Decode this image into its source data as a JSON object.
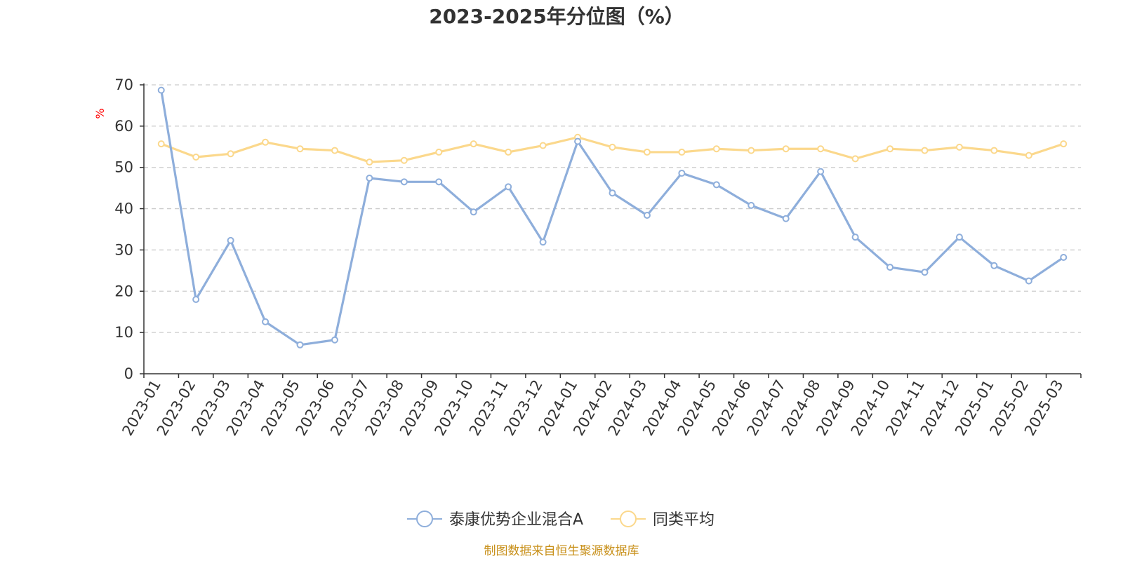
{
  "chart_data": {
    "type": "line",
    "title": "2023-2025年分位图（%）",
    "ylabel": "%",
    "ylim": [
      0,
      70
    ],
    "yticks": [
      0,
      10,
      20,
      30,
      40,
      50,
      60,
      70
    ],
    "grid": true,
    "legend_position": "bottom",
    "categories": [
      "2023-01",
      "2023-02",
      "2023-03",
      "2023-04",
      "2023-05",
      "2023-06",
      "2023-07",
      "2023-08",
      "2023-09",
      "2023-10",
      "2023-11",
      "2023-12",
      "2024-01",
      "2024-02",
      "2024-03",
      "2024-04",
      "2024-05",
      "2024-06",
      "2024-07",
      "2024-08",
      "2024-09",
      "2024-10",
      "2024-11",
      "2024-12",
      "2025-01",
      "2025-02",
      "2025-03"
    ],
    "series": [
      {
        "name": "泰康优势企业混合A",
        "color": "#8eaedb",
        "values": [
          68.7,
          18.0,
          32.3,
          12.6,
          7.0,
          8.2,
          47.4,
          46.5,
          46.5,
          39.2,
          45.3,
          31.9,
          56.3,
          43.8,
          38.4,
          48.6,
          45.8,
          40.8,
          37.6,
          49.0,
          33.1,
          25.8,
          24.6,
          33.1,
          26.2,
          22.5,
          28.2
        ]
      },
      {
        "name": "同类平均",
        "color": "#fbd88c",
        "values": [
          55.7,
          52.5,
          53.3,
          56.1,
          54.5,
          54.1,
          51.3,
          51.7,
          53.7,
          55.7,
          53.7,
          55.3,
          57.3,
          54.9,
          53.7,
          53.7,
          54.5,
          54.1,
          54.5,
          54.5,
          52.1,
          54.5,
          54.1,
          54.9,
          54.1,
          52.9,
          55.7
        ]
      }
    ]
  },
  "source_text": "制图数据来自恒生聚源数据库"
}
